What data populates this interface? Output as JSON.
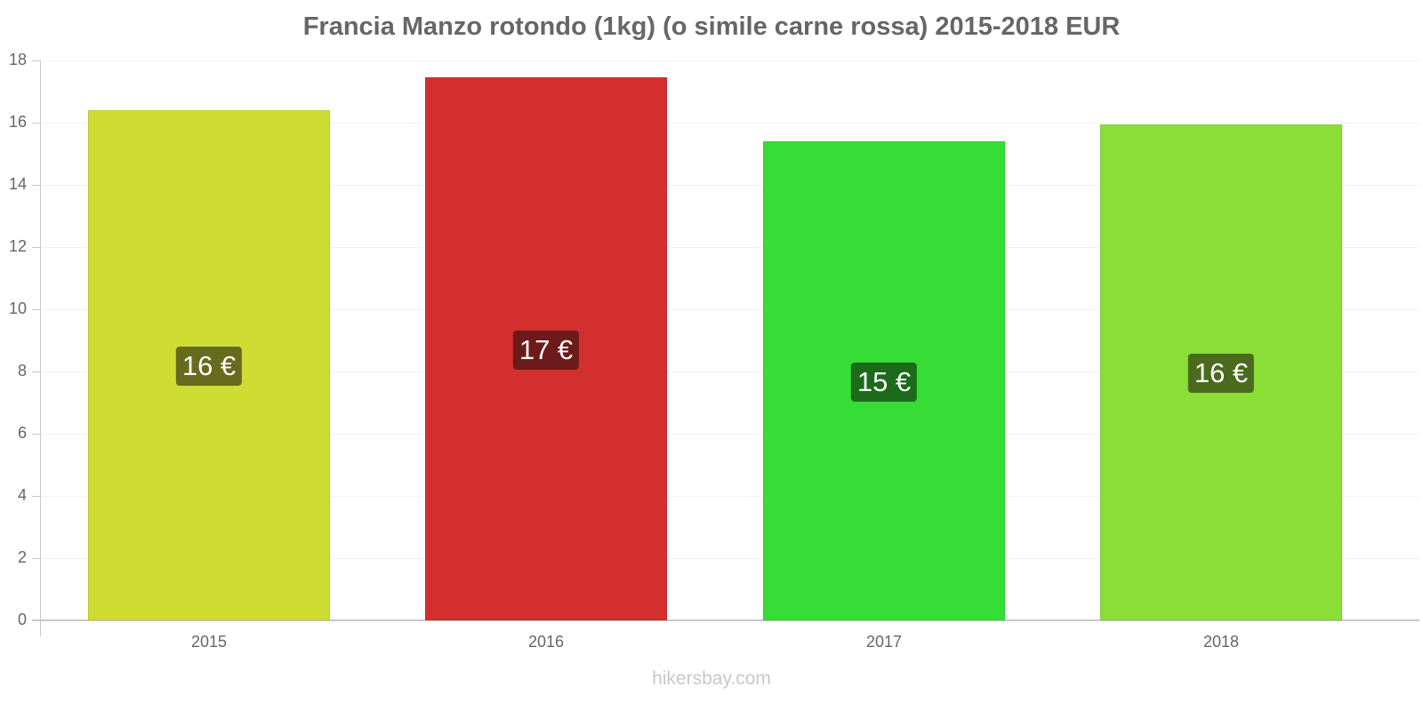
{
  "title": "Francia Manzo rotondo (1kg) (o simile carne rossa) 2015-2018 EUR",
  "watermark": "hikersbay.com",
  "y_ticks": [
    "0",
    "2",
    "4",
    "6",
    "8",
    "10",
    "12",
    "14",
    "16",
    "18"
  ],
  "bars": [
    {
      "year": "2015",
      "value": 16.4,
      "label": "16 €",
      "color": "#cfdd33",
      "badge_color": "#666b1e"
    },
    {
      "year": "2016",
      "value": 17.45,
      "label": "17 €",
      "color": "#d32f2f",
      "badge_color": "#6d1a1a"
    },
    {
      "year": "2017",
      "value": 15.4,
      "label": "15 €",
      "color": "#36dd36",
      "badge_color": "#1b6b1b"
    },
    {
      "year": "2018",
      "value": 15.95,
      "label": "16 €",
      "color": "#8ade36",
      "badge_color": "#4a6b1e"
    }
  ],
  "chart_data": {
    "type": "bar",
    "title": "Francia Manzo rotondo (1kg) (o simile carne rossa) 2015-2018 EUR",
    "categories": [
      "2015",
      "2016",
      "2017",
      "2018"
    ],
    "values": [
      16.4,
      17.45,
      15.4,
      15.95
    ],
    "data_labels": [
      "16 €",
      "17 €",
      "15 €",
      "16 €"
    ],
    "xlabel": "",
    "ylabel": "",
    "ylim": [
      0,
      18
    ],
    "yticks": [
      0,
      2,
      4,
      6,
      8,
      10,
      12,
      14,
      16,
      18
    ],
    "grid": true,
    "legend": "none",
    "colors": [
      "#cfdd33",
      "#d32f2f",
      "#36dd36",
      "#8ade36"
    ]
  }
}
